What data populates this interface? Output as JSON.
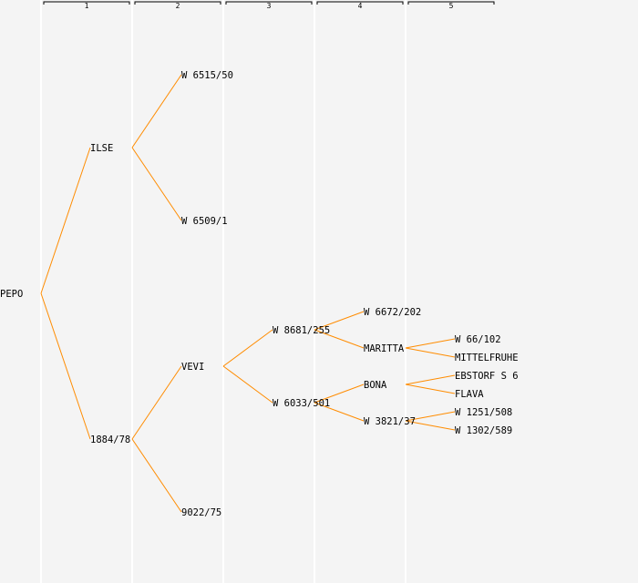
{
  "columns": [
    "1",
    "2",
    "3",
    "4",
    "5"
  ],
  "colors": {
    "line": "#ff8c00",
    "background": "#f4f4f4",
    "divider": "#ffffff"
  },
  "tree": {
    "name": "PEPO",
    "children": [
      {
        "name": "ILSE",
        "children": [
          {
            "name": "W 6515/50"
          },
          {
            "name": "W 6509/1"
          }
        ]
      },
      {
        "name": "1884/78",
        "children": [
          {
            "name": "VEVI",
            "children": [
              {
                "name": "W 8681/255",
                "children": [
                  {
                    "name": "W 6672/202"
                  },
                  {
                    "name": "MARITTA",
                    "children": [
                      {
                        "name": "W 66/102"
                      },
                      {
                        "name": "MITTELFRUHE"
                      }
                    ]
                  }
                ]
              },
              {
                "name": "W 6033/501",
                "children": [
                  {
                    "name": "BONA",
                    "children": [
                      {
                        "name": "EBSTORF S 6"
                      },
                      {
                        "name": "FLAVA"
                      }
                    ]
                  },
                  {
                    "name": "W 3821/37",
                    "children": [
                      {
                        "name": "W 1251/508"
                      },
                      {
                        "name": "W 1302/589"
                      }
                    ]
                  }
                ]
              }
            ]
          },
          {
            "name": "9022/75"
          }
        ]
      }
    ]
  }
}
